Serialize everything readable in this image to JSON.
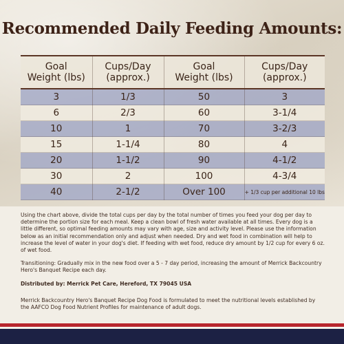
{
  "title": "Recommended Daily Feeding Amounts:",
  "table": {
    "headers": [
      "Goal\nWeight (lbs)",
      "Cups/Day\n(approx.)",
      "Goal\nWeight (lbs)",
      "Cups/Day\n(approx.)"
    ],
    "rows": [
      [
        "3",
        "1/3",
        "50",
        "3"
      ],
      [
        "6",
        "2/3",
        "60",
        "3-1/4"
      ],
      [
        "10",
        "1",
        "70",
        "3-2/3"
      ],
      [
        "15",
        "1-1/4",
        "80",
        "4"
      ],
      [
        "20",
        "1-1/2",
        "90",
        "4-1/2"
      ],
      [
        "30",
        "2",
        "100",
        "4-3/4"
      ],
      [
        "40",
        "2-1/2",
        "Over 100",
        "+ 1/3 cup per additional 10 lbs"
      ]
    ]
  },
  "paragraphs": {
    "instructions": "Using the chart above, divide the total cups per day by the total number of times you feed your dog per day to determine the portion size for each meal. Keep a clean bowl of fresh water available at all times. Every dog is a little different, so optimal feeding amounts may vary with age, size and activity level. Please use the information below as an initial recommendation only and adjust when needed. Dry and wet food in combination will help to increase the level of water in your dog's diet. If feeding with wet food, reduce dry amount by 1/2 cup for every 6 oz. of wet food.",
    "transitioning": "Transitioning: Gradually mix in the new food over a 5 - 7 day period, increasing the amount of Merrick Backcountry Hero's Banquet Recipe each day.",
    "distributed": "Distributed by: Merrick Pet Care, Hereford, TX 79045 USA",
    "aafco": "Merrick Backcountry Hero's Banquet Recipe Dog Food is formulated to meet the nutritional levels established by the AAFCO Dog Food Nutrient Profiles for maintenance of adult dogs."
  },
  "colors": {
    "title": "#3d2217",
    "row_tint": "#a0a6c6",
    "stripe_red": "#b8262d",
    "stripe_navy": "#1c2144"
  }
}
